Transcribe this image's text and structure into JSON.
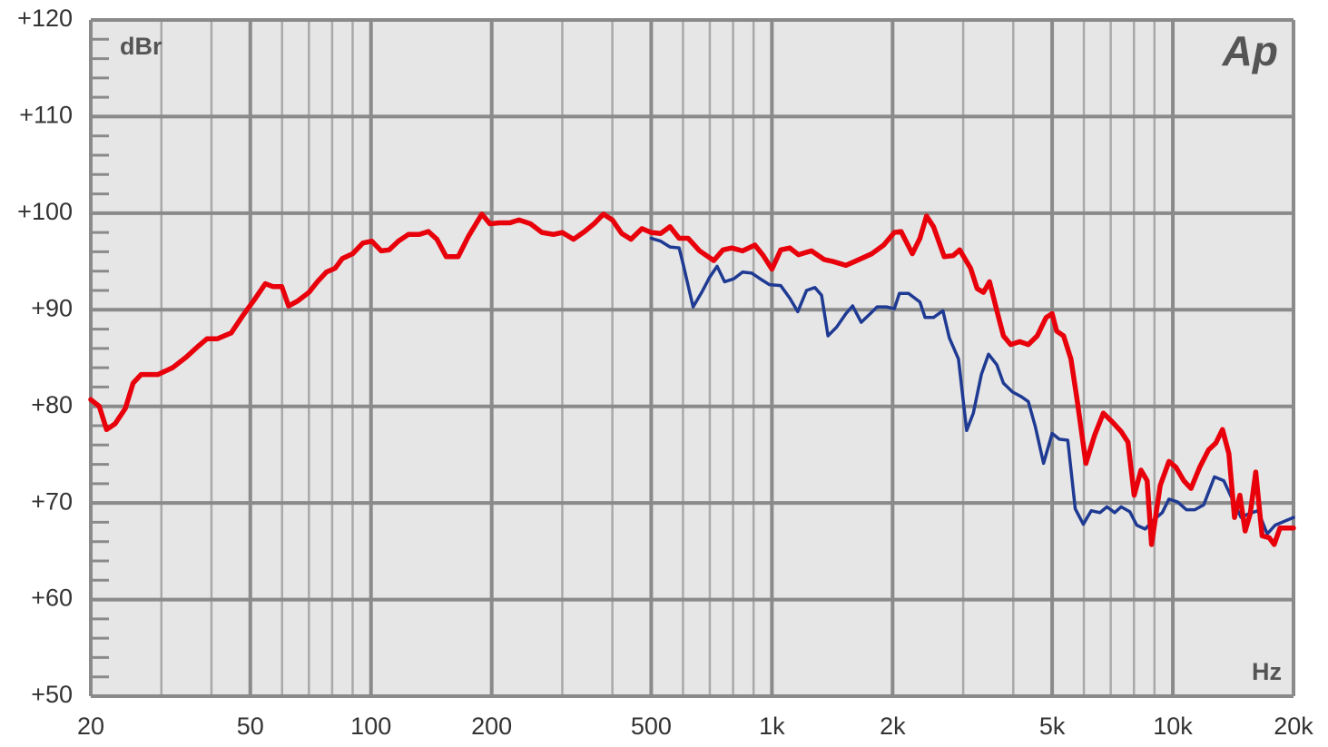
{
  "chart_data": {
    "type": "line",
    "y_unit_label": "dBr",
    "x_unit_label": "Hz",
    "logo": "Ap",
    "xlog": true,
    "grid": true,
    "xlim": [
      20,
      20000
    ],
    "ylim": [
      50,
      120
    ],
    "xticks": [
      20,
      50,
      100,
      200,
      500,
      {
        "value": 1000,
        "label": "1k"
      },
      {
        "value": 2000,
        "label": "2k"
      },
      {
        "value": 5000,
        "label": "5k"
      },
      {
        "value": 10000,
        "label": "10k"
      },
      {
        "value": 20000,
        "label": "20k"
      }
    ],
    "yticks": [
      {
        "value": 50,
        "label": "+50"
      },
      {
        "value": 60,
        "label": "+60"
      },
      {
        "value": 70,
        "label": "+70"
      },
      {
        "value": 80,
        "label": "+80"
      },
      {
        "value": 90,
        "label": "+90"
      },
      {
        "value": 100,
        "label": "+100"
      },
      {
        "value": 110,
        "label": "+110"
      },
      {
        "value": 120,
        "label": "+120"
      }
    ],
    "series": [
      {
        "color": "#1f3a93",
        "x": [
          500,
          528,
          557,
          587,
          600,
          636,
          668,
          700,
          730,
          762,
          803,
          845,
          890,
          935,
          986,
          1052,
          1108,
          1160,
          1220,
          1280,
          1330,
          1380,
          1450,
          1530,
          1590,
          1670,
          1760,
          1830,
          1930,
          2020,
          2080,
          2190,
          2340,
          2410,
          2530,
          2670,
          2770,
          2920,
          3060,
          3180,
          3330,
          3470,
          3640,
          3780,
          3980,
          4190,
          4360,
          4540,
          4760,
          5000,
          5210,
          5470,
          5710,
          5980,
          6260,
          6580,
          6850,
          7160,
          7430,
          7810,
          8130,
          8530,
          8990,
          9410,
          9780,
          10280,
          10810,
          11350,
          11940,
          12700,
          13400,
          14000,
          14800,
          15500,
          16300,
          17200,
          18000,
          20000
        ],
        "values": [
          97.4,
          97.1,
          96.5,
          96.4,
          94.8,
          90.3,
          91.8,
          93.4,
          94.5,
          92.9,
          93.2,
          93.9,
          93.8,
          93.2,
          92.6,
          92.5,
          91.2,
          89.8,
          92.0,
          92.3,
          91.5,
          87.3,
          88.2,
          89.6,
          90.4,
          88.7,
          89.6,
          90.3,
          90.3,
          90.1,
          91.7,
          91.7,
          90.8,
          89.2,
          89.2,
          89.9,
          87.1,
          84.9,
          77.5,
          79.3,
          83.3,
          85.4,
          84.3,
          82.4,
          81.5,
          81.0,
          80.5,
          77.9,
          74.1,
          77.2,
          76.6,
          76.5,
          69.4,
          67.8,
          69.2,
          69.0,
          69.6,
          69.0,
          69.6,
          69.1,
          67.7,
          67.3,
          68.3,
          69.0,
          70.4,
          70.1,
          69.3,
          69.3,
          69.8,
          72.7,
          72.3,
          70.6,
          68.5,
          68.9,
          69.2,
          66.8,
          67.7,
          68.5
        ]
      },
      {
        "color": "#e8000b",
        "x": [
          20,
          21,
          21.9,
          23,
          24.4,
          25.5,
          26.7,
          29.4,
          32,
          34.6,
          37,
          39,
          41.4,
          44.8,
          47.9,
          51.3,
          54.5,
          56.9,
          59.9,
          62.3,
          65.6,
          70,
          73.5,
          77.4,
          81.4,
          84.8,
          90,
          95.4,
          100.5,
          106,
          111,
          117,
          124,
          132,
          139,
          146,
          154,
          165,
          175,
          189,
          198,
          209,
          222,
          234,
          250,
          267,
          285,
          300,
          320,
          341,
          360,
          380,
          400,
          422,
          445,
          474,
          500,
          528,
          557,
          587,
          618,
          660,
          716,
          755,
          794,
          845,
          907,
          952,
          1000,
          1052,
          1108,
          1165,
          1255,
          1350,
          1420,
          1530,
          1610,
          1775,
          1900,
          2020,
          2100,
          2240,
          2340,
          2430,
          2530,
          2690,
          2830,
          2940,
          3130,
          3250,
          3370,
          3490,
          3630,
          3780,
          3940,
          4150,
          4360,
          4590,
          4830,
          5000,
          5130,
          5340,
          5570,
          5770,
          6070,
          6380,
          6710,
          7060,
          7430,
          7730,
          8010,
          8330,
          8630,
          8850,
          9300,
          9780,
          10180,
          10650,
          11100,
          11670,
          12280,
          12800,
          13300,
          13800,
          14250,
          14700,
          15150,
          15600,
          16100,
          16700,
          17400,
          17900,
          18500,
          20000
        ],
        "values": [
          80.7,
          80.0,
          77.6,
          78.2,
          79.8,
          82.4,
          83.3,
          83.3,
          84.0,
          85.1,
          86.2,
          87.0,
          87.0,
          87.6,
          89.4,
          91.1,
          92.7,
          92.4,
          92.4,
          90.4,
          90.9,
          91.8,
          92.9,
          93.9,
          94.3,
          95.3,
          95.8,
          96.9,
          97.1,
          96.1,
          96.2,
          97.1,
          97.8,
          97.8,
          98.1,
          97.3,
          95.5,
          95.5,
          97.6,
          99.9,
          98.9,
          99.0,
          99.0,
          99.3,
          98.9,
          98.0,
          97.8,
          98.0,
          97.3,
          98.1,
          98.9,
          99.9,
          99.3,
          97.9,
          97.3,
          98.4,
          98.0,
          97.9,
          98.6,
          97.4,
          97.4,
          96.1,
          95.1,
          96.2,
          96.4,
          96.1,
          96.7,
          95.6,
          94.2,
          96.2,
          96.4,
          95.7,
          96.1,
          95.2,
          95.0,
          94.6,
          95.0,
          95.8,
          96.7,
          98.0,
          98.1,
          95.8,
          97.4,
          99.7,
          98.6,
          95.5,
          95.6,
          96.2,
          94.3,
          92.2,
          91.8,
          92.9,
          90.1,
          87.3,
          86.4,
          86.7,
          86.4,
          87.3,
          89.2,
          89.6,
          87.8,
          87.3,
          84.9,
          80.7,
          74.1,
          77.0,
          79.3,
          78.4,
          77.4,
          76.3,
          70.8,
          73.4,
          72.3,
          65.7,
          71.8,
          74.3,
          73.7,
          72.3,
          71.5,
          73.7,
          75.5,
          76.2,
          77.6,
          75.1,
          68.5,
          70.8,
          67.1,
          68.9,
          73.2,
          66.6,
          66.4,
          65.7,
          67.4,
          67.4
        ]
      }
    ]
  }
}
